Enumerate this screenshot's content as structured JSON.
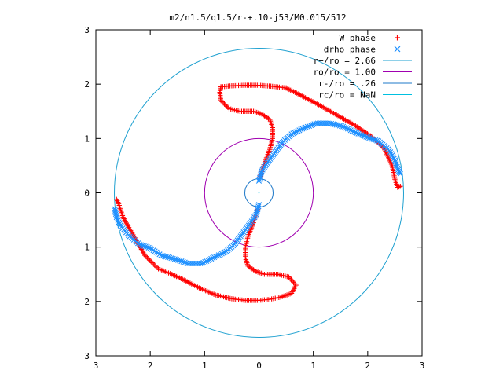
{
  "chart_data": {
    "type": "scatter",
    "title": "m2/n1.5/q1.5/r-+.10-j53/M0.015/512",
    "xlabel": "",
    "ylabel": "",
    "xlim": [
      -3,
      3
    ],
    "ylim": [
      -3,
      3
    ],
    "x_tick_labels": [
      "3",
      "2",
      "1",
      "0",
      "1",
      "2",
      "3"
    ],
    "y_tick_labels": [
      "3",
      "2",
      "1",
      "0",
      "1",
      "2",
      "3"
    ],
    "grid": false,
    "legend_position": "top-right",
    "series": [
      {
        "name": "W phase",
        "marker": "plus",
        "color": "#ff0000",
        "arms": [
          [
            [
              0.02,
              0.3
            ],
            [
              0.1,
              0.55
            ],
            [
              0.2,
              0.8
            ],
            [
              0.25,
              1.0
            ],
            [
              0.25,
              1.2
            ],
            [
              0.2,
              1.35
            ],
            [
              0.05,
              1.45
            ],
            [
              -0.1,
              1.5
            ],
            [
              -0.35,
              1.5
            ],
            [
              -0.55,
              1.55
            ],
            [
              -0.7,
              1.7
            ],
            [
              -0.72,
              1.85
            ],
            [
              -0.7,
              1.95
            ]
          ],
          [
            [
              -0.7,
              1.95
            ],
            [
              -0.5,
              1.97
            ],
            [
              -0.25,
              1.98
            ],
            [
              0.0,
              1.98
            ],
            [
              0.25,
              1.96
            ],
            [
              0.5,
              1.93
            ]
          ],
          [
            [
              0.5,
              1.93
            ],
            [
              0.8,
              1.78
            ],
            [
              1.1,
              1.62
            ],
            [
              1.4,
              1.45
            ],
            [
              1.75,
              1.25
            ],
            [
              2.05,
              1.05
            ],
            [
              2.3,
              0.82
            ],
            [
              2.45,
              0.5
            ],
            [
              2.5,
              0.25
            ],
            [
              2.55,
              0.1
            ],
            [
              2.6,
              0.12
            ]
          ],
          [
            [
              -0.02,
              -0.3
            ],
            [
              -0.1,
              -0.55
            ],
            [
              -0.2,
              -0.8
            ],
            [
              -0.25,
              -1.0
            ],
            [
              -0.25,
              -1.2
            ],
            [
              -0.2,
              -1.35
            ],
            [
              -0.05,
              -1.45
            ],
            [
              0.1,
              -1.5
            ],
            [
              0.35,
              -1.5
            ],
            [
              0.55,
              -1.55
            ],
            [
              0.68,
              -1.7
            ],
            [
              0.6,
              -1.85
            ],
            [
              0.4,
              -1.92
            ]
          ],
          [
            [
              0.4,
              -1.92
            ],
            [
              0.2,
              -1.96
            ],
            [
              0.0,
              -1.98
            ],
            [
              -0.25,
              -1.98
            ],
            [
              -0.5,
              -1.95
            ],
            [
              -0.8,
              -1.88
            ],
            [
              -1.1,
              -1.75
            ],
            [
              -1.35,
              -1.62
            ]
          ],
          [
            [
              -1.35,
              -1.62
            ],
            [
              -1.6,
              -1.5
            ],
            [
              -1.85,
              -1.4
            ],
            [
              -2.1,
              -1.15
            ],
            [
              -2.3,
              -0.8
            ],
            [
              -2.5,
              -0.45
            ],
            [
              -2.58,
              -0.2
            ],
            [
              -2.62,
              -0.12
            ]
          ]
        ]
      },
      {
        "name": "drho phase",
        "marker": "cross",
        "color": "#1e90ff",
        "arms": [
          [
            [
              0.0,
              0.22
            ],
            [
              0.05,
              0.4
            ],
            [
              0.15,
              0.55
            ],
            [
              0.3,
              0.75
            ],
            [
              0.45,
              0.95
            ],
            [
              0.6,
              1.08
            ],
            [
              0.8,
              1.18
            ],
            [
              1.05,
              1.28
            ],
            [
              1.3,
              1.28
            ],
            [
              1.55,
              1.22
            ],
            [
              1.8,
              1.1
            ],
            [
              2.0,
              1.02
            ],
            [
              2.2,
              0.95
            ],
            [
              2.4,
              0.78
            ],
            [
              2.5,
              0.6
            ],
            [
              2.55,
              0.45
            ],
            [
              2.6,
              0.35
            ]
          ],
          [
            [
              0.0,
              -0.22
            ],
            [
              -0.05,
              -0.4
            ],
            [
              -0.15,
              -0.55
            ],
            [
              -0.3,
              -0.75
            ],
            [
              -0.45,
              -0.95
            ],
            [
              -0.6,
              -1.08
            ],
            [
              -0.85,
              -1.2
            ],
            [
              -1.05,
              -1.3
            ],
            [
              -1.3,
              -1.3
            ],
            [
              -1.55,
              -1.22
            ],
            [
              -1.8,
              -1.15
            ],
            [
              -2.0,
              -1.02
            ],
            [
              -2.2,
              -0.95
            ],
            [
              -2.4,
              -0.78
            ],
            [
              -2.55,
              -0.6
            ],
            [
              -2.62,
              -0.45
            ],
            [
              -2.65,
              -0.3
            ]
          ]
        ]
      }
    ],
    "circles": [
      {
        "label": "r+/ro = 2.66",
        "radius": 2.66,
        "color": "#1ea0d0"
      },
      {
        "label": "ro/ro = 1.00",
        "radius": 1.0,
        "color": "#a000b0"
      },
      {
        "label": "r-/ro = .26",
        "radius": 0.26,
        "color": "#1e78c8"
      },
      {
        "label": "rc/ro = NaN",
        "radius": null,
        "color": "#00c0e0"
      }
    ]
  }
}
